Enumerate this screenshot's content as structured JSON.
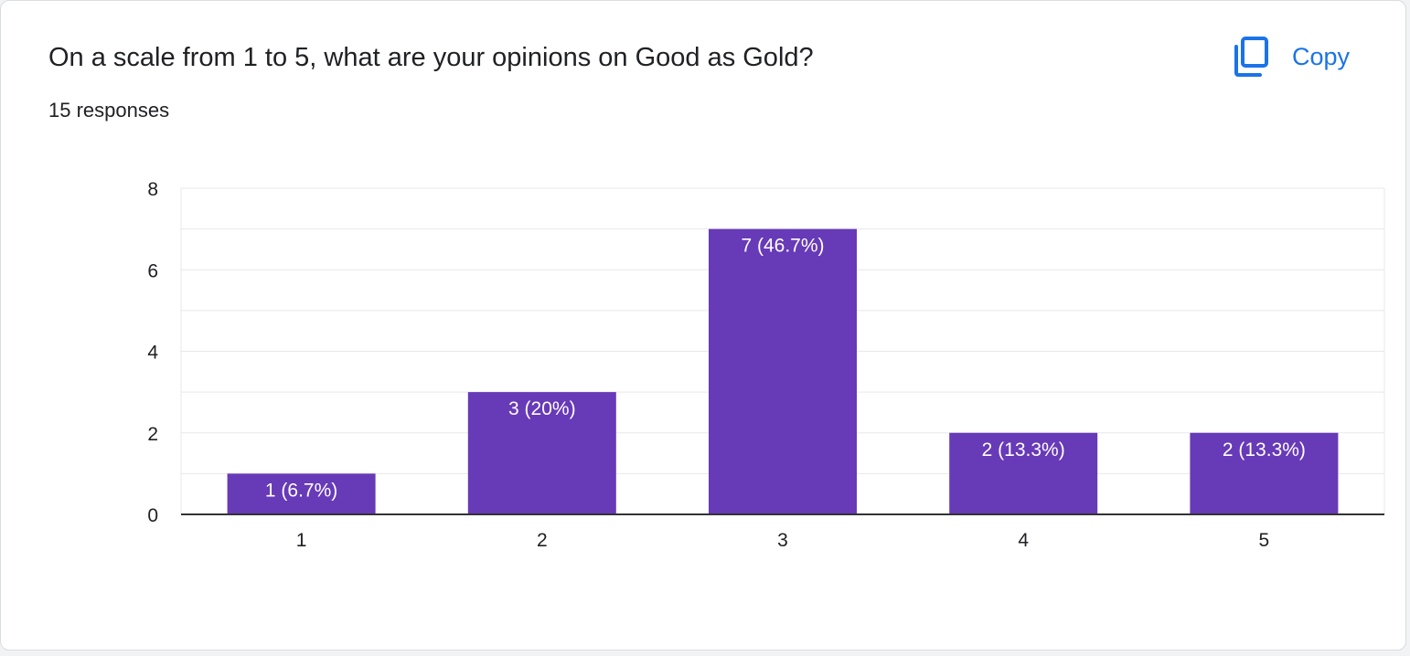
{
  "header": {
    "title": "On a scale from 1 to 5, what are your opinions on Good as Gold?",
    "responses": "15 responses",
    "copy_label": "Copy",
    "copy_icon": "copy-icon"
  },
  "colors": {
    "bar": "#673ab7",
    "accent": "#1a73e8",
    "grid": "#e8e8e8",
    "axis": "#333333"
  },
  "chart_data": {
    "type": "bar",
    "categories": [
      "1",
      "2",
      "3",
      "4",
      "5"
    ],
    "values": [
      1,
      3,
      7,
      2,
      2
    ],
    "data_labels": [
      "1 (6.7%)",
      "3 (20%)",
      "7 (46.7%)",
      "2 (13.3%)",
      "2 (13.3%)"
    ],
    "y_ticks": [
      "0",
      "2",
      "4",
      "6",
      "8"
    ],
    "ylim": [
      0,
      8
    ],
    "grid": true,
    "minor_grid": true,
    "legend": "none"
  }
}
